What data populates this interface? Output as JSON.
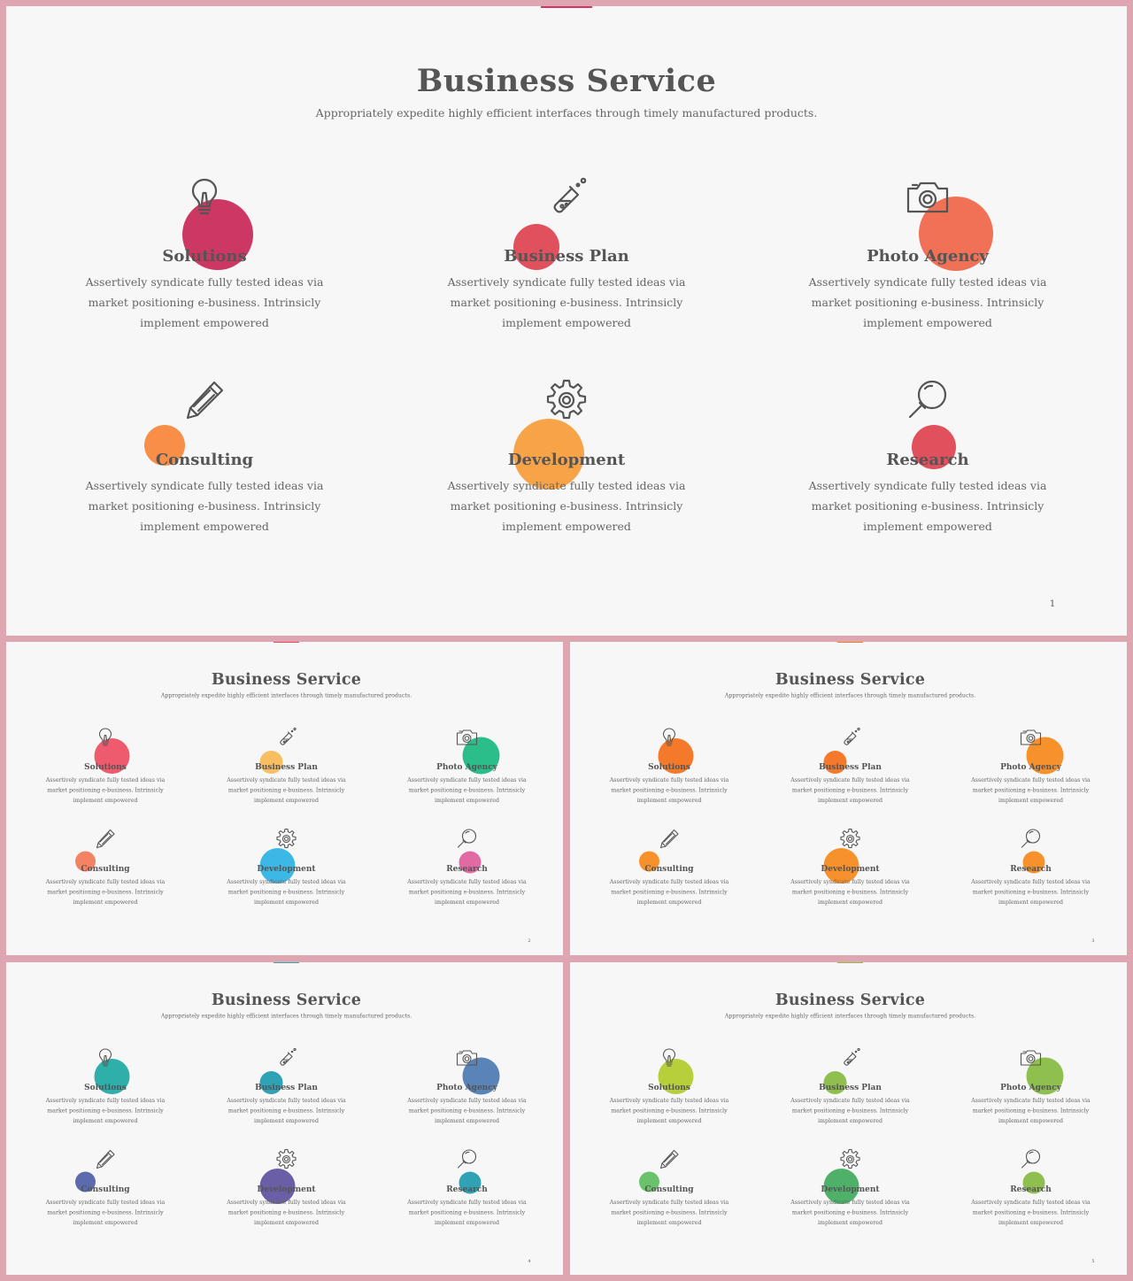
{
  "title": "Business Service",
  "subtitle": "Appropriately expedite highly efficient interfaces through timely manufactured products.",
  "services": [
    {
      "name": "Solutions",
      "icon": "lightbulb-icon",
      "desc": "Assertively syndicate fully tested ideas via market positioning e-business. Intrinsicly implement empowered"
    },
    {
      "name": "Business Plan",
      "icon": "flask-icon",
      "desc": "Assertively syndicate fully tested ideas via market positioning e-business. Intrinsicly implement empowered"
    },
    {
      "name": "Photo Agency",
      "icon": "camera-icon",
      "desc": "Assertively syndicate fully tested ideas via market positioning e-business. Intrinsicly implement empowered"
    },
    {
      "name": "Consulting",
      "icon": "pencil-icon",
      "desc": "Assertively syndicate fully tested ideas via market positioning e-business. Intrinsicly implement empowered"
    },
    {
      "name": "Development",
      "icon": "gear-icon",
      "desc": "Assertively syndicate fully tested ideas via market positioning e-business. Intrinsicly implement empowered"
    },
    {
      "name": "Research",
      "icon": "magnifier-icon",
      "desc": "Assertively syndicate fully tested ideas via market positioning e-business. Intrinsicly implement empowered"
    }
  ],
  "slides": [
    {
      "page": "1",
      "accent": "#cc3763",
      "colors": [
        "#cc3763",
        "#e0505d",
        "#f07156",
        "#f78f48",
        "#f7a448",
        "#e0505d"
      ]
    },
    {
      "page": "2",
      "accent": "#e0505d",
      "colors": [
        "#ef5b6e",
        "#f7be62",
        "#2bbd8a",
        "#f48365",
        "#3cb8e6",
        "#e26aa3"
      ]
    },
    {
      "page": "3",
      "accent": "#f07d2a",
      "colors": [
        "#f5792a",
        "#f5792a",
        "#f7912b",
        "#f7912b",
        "#f7912b",
        "#f7912b"
      ]
    },
    {
      "page": "4",
      "accent": "#3ba6b0",
      "colors": [
        "#2fafaa",
        "#2fa2b5",
        "#5a83b8",
        "#5c6aae",
        "#6a5fa6",
        "#2fa2b5"
      ]
    },
    {
      "page": "5",
      "accent": "#8fbf4f",
      "colors": [
        "#b7cf3a",
        "#8fbf4f",
        "#8fbf4f",
        "#6ac26a",
        "#4fb06a",
        "#8fbf4f"
      ]
    }
  ]
}
